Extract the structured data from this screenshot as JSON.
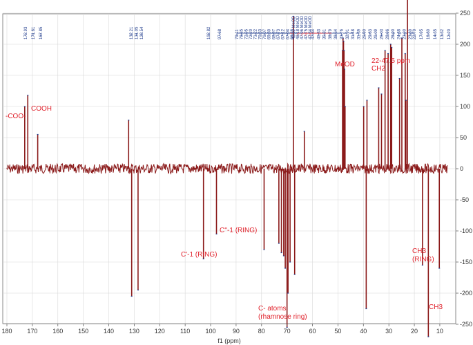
{
  "chart_data": {
    "type": "line",
    "title": "",
    "xlabel": "f1 (ppm)",
    "ylabel": "",
    "xlim": [
      180,
      7
    ],
    "ylim": [
      -305,
      330
    ],
    "x_reversed": true,
    "grid": true,
    "legend": "none",
    "colors": {
      "spectrum": "#8b1a1a",
      "peak_label": "#1f3b8c",
      "solvent_label": "#e0202a",
      "annotation": "#e0202a",
      "grid": "#d8d8d8"
    },
    "x_ticks": [
      180,
      170,
      160,
      150,
      140,
      130,
      120,
      110,
      100,
      90,
      80,
      70,
      60,
      50,
      40,
      30,
      20,
      10
    ],
    "y_ticks": [
      300,
      250,
      200,
      150,
      100,
      50,
      0,
      -50,
      -100,
      -150,
      -200,
      -250,
      -300
    ],
    "y_tick_labels": [
      "300",
      "250",
      "200",
      "150",
      "100",
      "50",
      "0",
      "-50",
      "-100",
      "-150",
      "-200",
      "-250",
      "-300"
    ],
    "noise_band": 8,
    "series": [
      {
        "peaks": [
          {
            "x": 173.0,
            "y": 100
          },
          {
            "x": 171.8,
            "y": 118
          },
          {
            "x": 167.9,
            "y": 55
          },
          {
            "x": 132.2,
            "y": 78
          },
          {
            "x": 131.0,
            "y": -205
          },
          {
            "x": 128.5,
            "y": -195
          },
          {
            "x": 102.8,
            "y": -145
          },
          {
            "x": 97.7,
            "y": -105
          },
          {
            "x": 79.0,
            "y": -130
          },
          {
            "x": 73.2,
            "y": -120
          },
          {
            "x": 72.2,
            "y": -135
          },
          {
            "x": 71.3,
            "y": -140
          },
          {
            "x": 70.7,
            "y": -160
          },
          {
            "x": 70.0,
            "y": -255
          },
          {
            "x": 69.6,
            "y": -200
          },
          {
            "x": 68.8,
            "y": -150
          },
          {
            "x": 67.5,
            "y": 245
          },
          {
            "x": 67.0,
            "y": -170
          },
          {
            "x": 63.2,
            "y": 60
          },
          {
            "x": 48.2,
            "y": 190
          },
          {
            "x": 48.0,
            "y": 210
          },
          {
            "x": 47.8,
            "y": 205
          },
          {
            "x": 47.6,
            "y": 190
          },
          {
            "x": 47.4,
            "y": 160
          },
          {
            "x": 47.2,
            "y": 100
          },
          {
            "x": 39.9,
            "y": 100
          },
          {
            "x": 38.9,
            "y": -225
          },
          {
            "x": 38.6,
            "y": 110
          },
          {
            "x": 34.0,
            "y": 130
          },
          {
            "x": 32.9,
            "y": 120
          },
          {
            "x": 31.5,
            "y": 190
          },
          {
            "x": 30.3,
            "y": 185
          },
          {
            "x": 29.3,
            "y": 200
          },
          {
            "x": 28.9,
            "y": 195
          },
          {
            "x": 25.8,
            "y": 145
          },
          {
            "x": 24.9,
            "y": 210
          },
          {
            "x": 23.6,
            "y": 185
          },
          {
            "x": 23.3,
            "y": 110
          },
          {
            "x": 22.7,
            "y": 280
          },
          {
            "x": 16.8,
            "y": -155
          },
          {
            "x": 14.5,
            "y": -270
          },
          {
            "x": 10.2,
            "y": -160
          }
        ]
      }
    ],
    "peak_labels": {
      "left_group": [
        "172.93",
        "171.61",
        "167.85"
      ],
      "aromatic_group": [
        "132.21",
        "131.05",
        "128.54"
      ],
      "anomeric_group": [
        "102.82",
        "97.68"
      ],
      "ring_group": [
        "79.11",
        "78.85",
        "72.95",
        "72.20",
        "71.22",
        "70.63",
        "70.07",
        "69.80",
        "68.97",
        "67.73",
        "67.12",
        "67.04",
        "66.28"
      ],
      "methanol_group": [
        "48.39 MeOD",
        "48.18 MeOD",
        "47.96 MeOD",
        "47.75 MeOD",
        "47.54 MeOD"
      ],
      "aliphatic_group": [
        "47.34",
        "40.33",
        "39.81",
        "38.79",
        "38.64",
        "33.76",
        "32.91",
        "31.48",
        "31.39",
        "29.90",
        "29.83",
        "29.09",
        "29.03",
        "28.96",
        "28.90",
        "24.88",
        "23.90",
        "23.80"
      ],
      "methyl_group": [
        "22.70",
        "17.95",
        "16.80",
        "14.35",
        "13.32",
        "12.20"
      ]
    },
    "annotations": {
      "coo": "-COO-",
      "cooh": "COOH",
      "c1_ring": "C'-1 (RING)",
      "c1pp_ring": "C''-1 (RING)",
      "c_atoms": "C- atoms",
      "rhamnose": "(rhamnose ring)",
      "meod": "MeOD",
      "ch2_range": "22-47.5 ppm",
      "ch2": "CH2",
      "ch3_ring_a": "CH3",
      "ch3_ring_b": "(RING)",
      "ch3": "CH3"
    }
  }
}
